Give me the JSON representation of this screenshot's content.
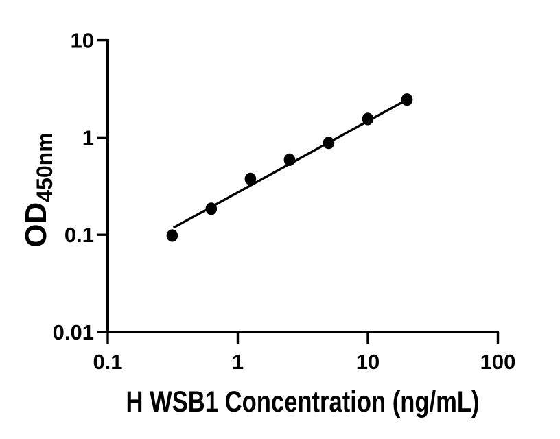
{
  "figure": {
    "background_color": "#ffffff",
    "ink_color": "#000000"
  },
  "chart_data": {
    "type": "scatter",
    "title": "",
    "xlabel": "H WSB1 Concentration (ng/mL)",
    "ylabel_main": "OD",
    "ylabel_sub": "450nm",
    "x_scale": "log",
    "y_scale": "log",
    "xlim": [
      0.1,
      100
    ],
    "ylim": [
      0.01,
      10
    ],
    "grid": false,
    "legend": "none",
    "x_ticks": [
      {
        "value": 0.1,
        "label": "0.1"
      },
      {
        "value": 1,
        "label": "1"
      },
      {
        "value": 10,
        "label": "10"
      },
      {
        "value": 100,
        "label": "100"
      }
    ],
    "y_ticks": [
      {
        "value": 0.01,
        "label": "0.01"
      },
      {
        "value": 0.1,
        "label": "0.1"
      },
      {
        "value": 1,
        "label": "1"
      },
      {
        "value": 10,
        "label": "10"
      }
    ],
    "series": [
      {
        "name": "standard-curve-points",
        "x": [
          0.313,
          0.625,
          1.25,
          2.5,
          5,
          10,
          20
        ],
        "y": [
          0.098,
          0.185,
          0.375,
          0.59,
          0.88,
          1.55,
          2.45
        ]
      }
    ],
    "fit_line": {
      "x1": 0.32,
      "y1": 0.118,
      "x2": 20,
      "y2": 2.45
    },
    "marker_color": "#000000",
    "line_color": "#000000"
  }
}
